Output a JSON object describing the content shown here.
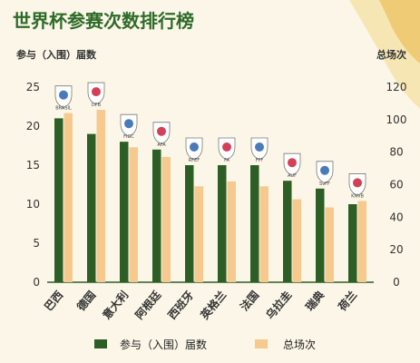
{
  "colors": {
    "appearances": "#2c5e25",
    "matches": "#f6c98f",
    "background": "#fbf6e7",
    "title": "#2e6b2a"
  },
  "chart_data": {
    "type": "bar",
    "title": "世界杯参赛次数排行榜",
    "left_axis_label": "参与（入围）届数",
    "right_axis_label": "总场次",
    "left_ylim": [
      0,
      25
    ],
    "left_ticks": [
      0,
      5,
      10,
      15,
      20,
      25
    ],
    "right_ylim": [
      0,
      120
    ],
    "right_ticks": [
      0,
      20,
      40,
      60,
      80,
      100,
      120
    ],
    "categories": [
      "巴西",
      "德国",
      "意大利",
      "阿根廷",
      "西班牙",
      "英格兰",
      "法国",
      "乌拉圭",
      "瑞典",
      "荷兰"
    ],
    "badges": [
      "BRASIL",
      "DFB",
      "FIGC",
      "AFA",
      "RFEF",
      "FA",
      "FFF",
      "AUF",
      "SvFF",
      "KNVB"
    ],
    "series": [
      {
        "name": "参与（入围）届数",
        "axis": "left",
        "values": [
          21,
          19,
          18,
          17,
          15,
          15,
          15,
          13,
          12,
          10
        ]
      },
      {
        "name": "总场次",
        "axis": "right",
        "values": [
          104,
          106,
          83,
          77,
          59,
          62,
          59,
          51,
          46,
          50
        ]
      }
    ],
    "grid": false,
    "legend": "bottom"
  }
}
